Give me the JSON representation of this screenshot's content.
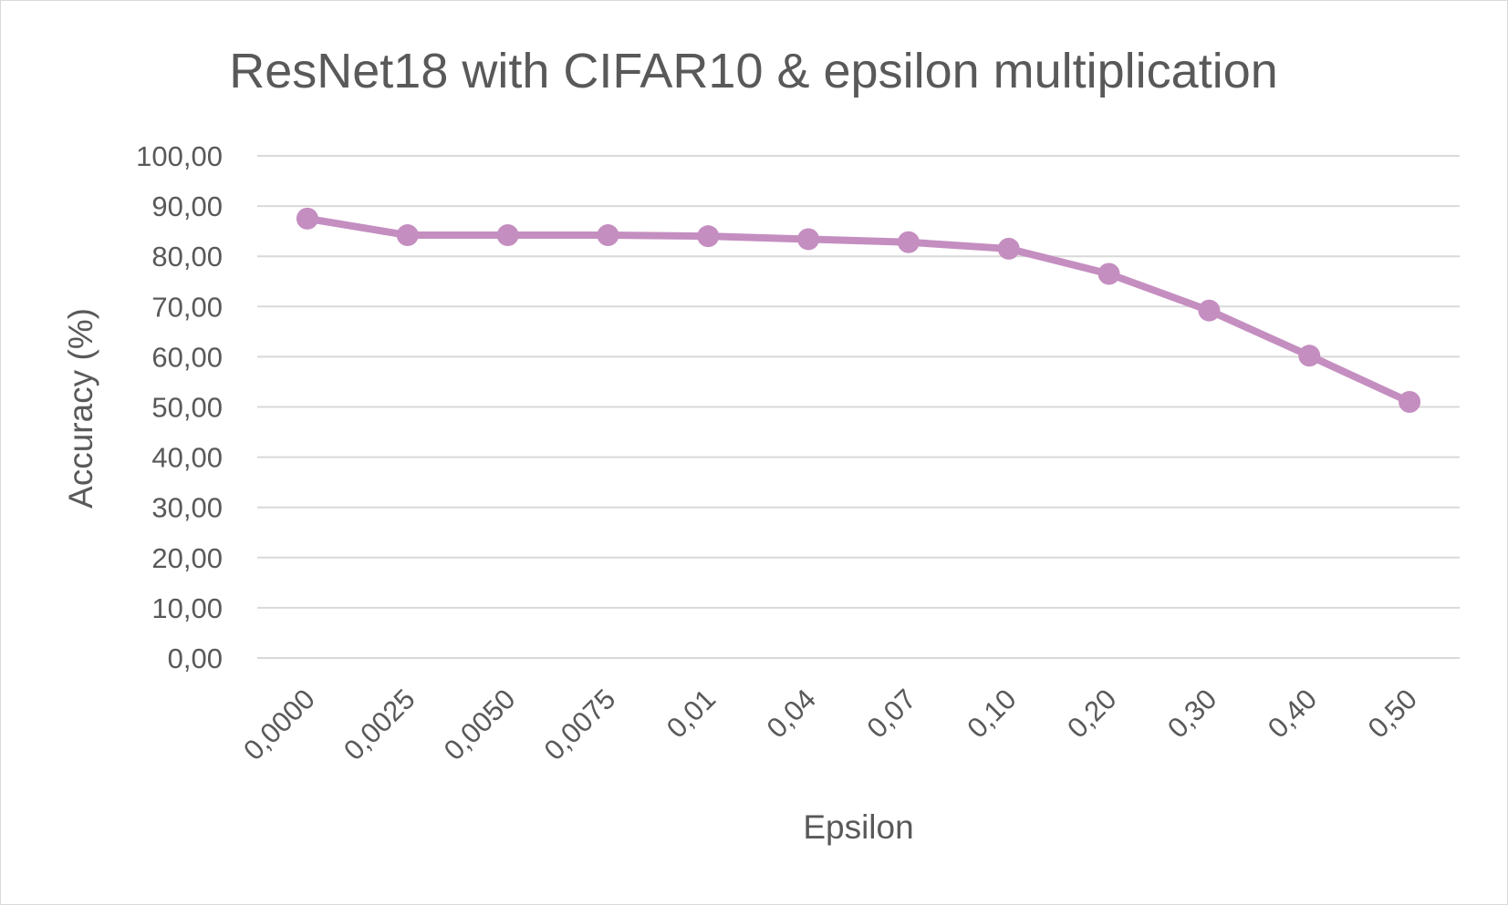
{
  "chart_data": {
    "type": "line",
    "title": "ResNet18 with CIFAR10 & epsilon multiplication",
    "xlabel": "Epsilon",
    "ylabel": "Accuracy (%)",
    "categories": [
      "0,0000",
      "0,0025",
      "0,0050",
      "0,0075",
      "0,01",
      "0,04",
      "0,07",
      "0,10",
      "0,20",
      "0,30",
      "0,40",
      "0,50"
    ],
    "y_tick_labels": [
      "0,00",
      "10,00",
      "20,00",
      "30,00",
      "40,00",
      "50,00",
      "60,00",
      "70,00",
      "80,00",
      "90,00",
      "100,00"
    ],
    "ylim": [
      0,
      100
    ],
    "y_step": 10,
    "grid": true,
    "legend": "none",
    "series": [
      {
        "values": [
          87.5,
          84.2,
          84.2,
          84.2,
          84.0,
          83.4,
          82.8,
          81.5,
          76.5,
          69.2,
          60.2,
          51.0
        ],
        "color": "#c48ec0"
      }
    ],
    "gridline_color": "#d9d9d9",
    "text_color": "#595959"
  }
}
